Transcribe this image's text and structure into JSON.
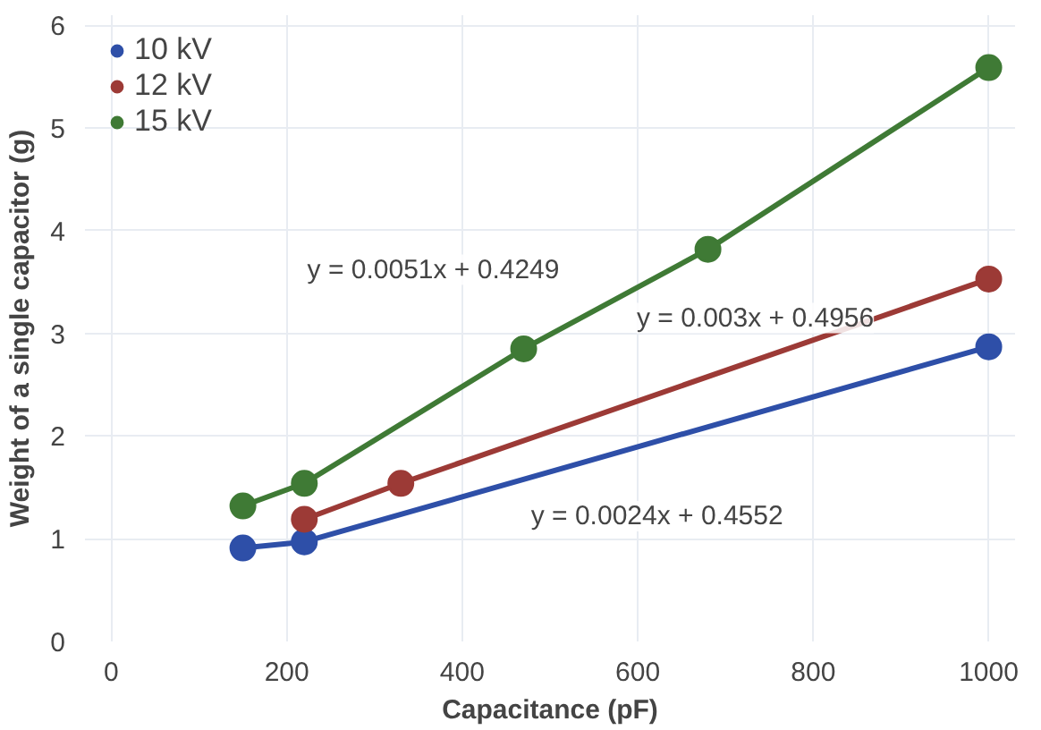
{
  "chart_data": {
    "type": "line",
    "xlabel": "Capacitance (pF)",
    "ylabel": "Weight of a single capacitor (g)",
    "series": [
      {
        "name": "10 kV",
        "color": "#2e4fa8",
        "x": [
          150,
          220,
          1000
        ],
        "values": [
          0.91,
          0.97,
          2.87
        ]
      },
      {
        "name": "12 kV",
        "color": "#9c3a36",
        "x": [
          220,
          330,
          1000
        ],
        "values": [
          1.19,
          1.54,
          3.53
        ]
      },
      {
        "name": "15 kV",
        "color": "#3f7a35",
        "x": [
          150,
          220,
          470,
          680,
          1000
        ],
        "values": [
          1.32,
          1.54,
          2.85,
          3.82,
          5.59
        ]
      }
    ],
    "annotations": [
      "y = 0.0051x + 0.4249",
      "y = 0.003x + 0.4956",
      "y = 0.0024x + 0.4552"
    ],
    "xlim": [
      0,
      1000
    ],
    "ylim": [
      0,
      6
    ],
    "xticks": [
      0,
      200,
      400,
      600,
      800,
      1000
    ],
    "yticks": [
      0,
      1,
      2,
      3,
      4,
      5,
      6
    ],
    "grid": true,
    "legend": "top left",
    "marker": "circle",
    "line_style": "solid"
  }
}
